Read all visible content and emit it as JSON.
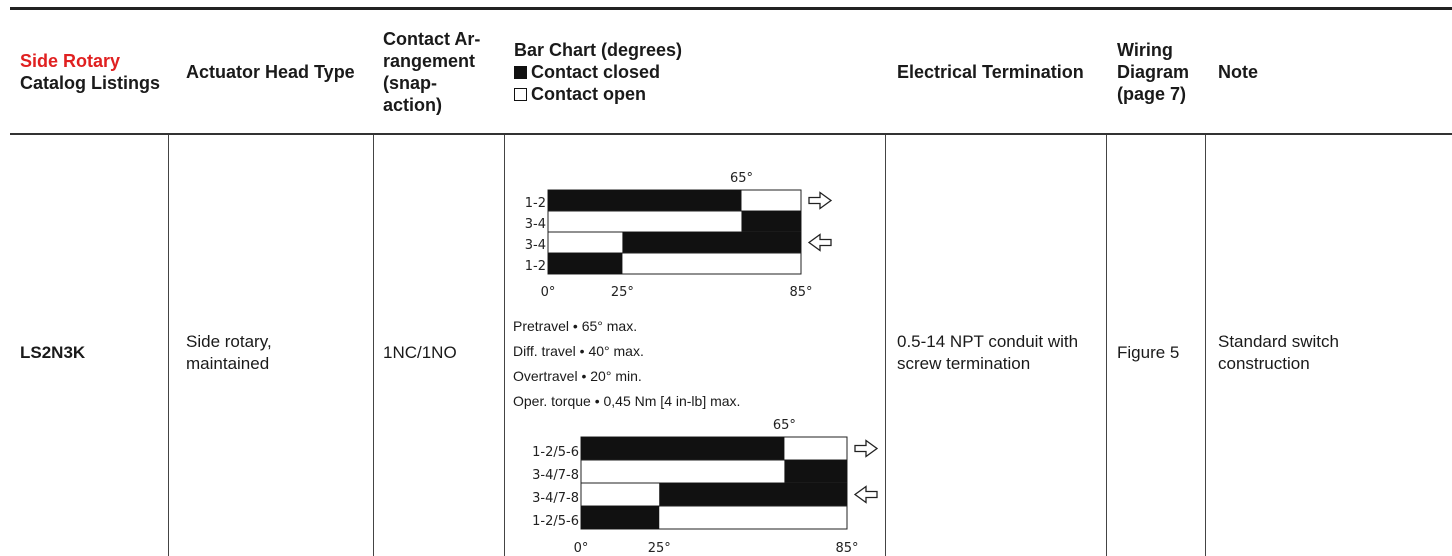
{
  "headers": {
    "catalog_red": "Side Rotary",
    "catalog_rest": "Catalog Listings",
    "actuator": "Actuator Head Type",
    "contact": "Contact Ar-rangement (snap-action)",
    "bar_title": "Bar Chart (degrees)",
    "bar_closed": "Contact closed",
    "bar_open": "Contact open",
    "electrical": "Electrical Termination",
    "wiring": "Wiring Diagram (page 7)",
    "note": "Note"
  },
  "row": {
    "catalog": "LS2N3K",
    "actuator": "Side rotary, maintained",
    "contact": "1NC/1NO",
    "electrical": "0.5-14 NPT conduit with screw termination",
    "wiring": "Figure 5",
    "note": "Standard switch construction"
  },
  "specs": {
    "pretravel": "Pretravel • 65° max.",
    "diff": "Diff. travel • 40° max.",
    "over": "Overtravel • 20° min.",
    "torque": "Oper. torque • 0,45 Nm [4 in-lb] max."
  },
  "chart_data": [
    {
      "type": "bar",
      "top_label": "65°",
      "axis_labels": [
        "0°",
        "25°",
        "85°"
      ],
      "range": [
        0,
        85
      ],
      "rows": [
        {
          "label": "1-2",
          "closed": [
            [
              0,
              65
            ]
          ],
          "arrow": "right"
        },
        {
          "label": "3-4",
          "closed": [
            [
              65,
              85
            ]
          ]
        },
        {
          "label": "3-4",
          "closed": [
            [
              25,
              85
            ]
          ],
          "arrow": "left"
        },
        {
          "label": "1-2",
          "closed": [
            [
              0,
              25
            ]
          ]
        }
      ]
    },
    {
      "type": "bar",
      "top_label": "65°",
      "axis_labels": [
        "0°",
        "25°",
        "85°"
      ],
      "range": [
        0,
        85
      ],
      "rows": [
        {
          "label": "1-2/5-6",
          "closed": [
            [
              0,
              65
            ]
          ],
          "arrow": "right"
        },
        {
          "label": "3-4/7-8",
          "closed": [
            [
              65,
              85
            ]
          ]
        },
        {
          "label": "3-4/7-8",
          "closed": [
            [
              25,
              85
            ]
          ],
          "arrow": "left"
        },
        {
          "label": "1-2/5-6",
          "closed": [
            [
              0,
              25
            ]
          ]
        }
      ]
    }
  ]
}
